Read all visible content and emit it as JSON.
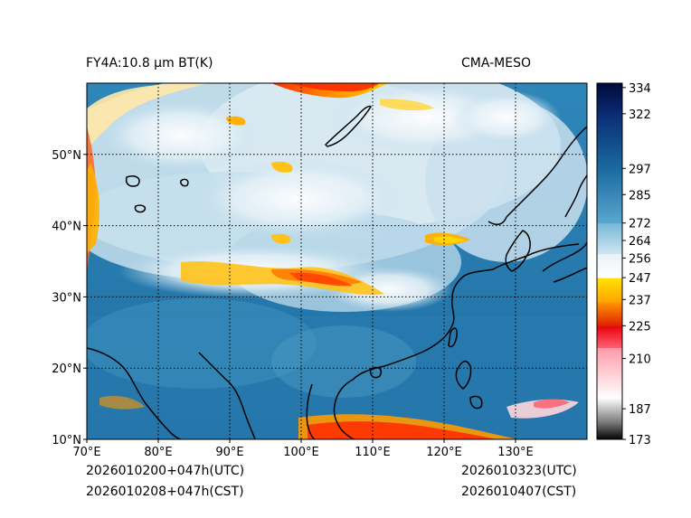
{
  "figure": {
    "title_left": "FY4A:10.8 µm BT(K)",
    "title_right": "CMA-MESO",
    "init_utc": "2026010200+047h(UTC)",
    "init_cst": "2026010208+047h(CST)",
    "valid_utc": "2026010323(UTC)",
    "valid_cst": "2026010407(CST)"
  },
  "map": {
    "lon_range": [
      70,
      140
    ],
    "lat_range": [
      10,
      60
    ],
    "lon_ticks": [
      {
        "value": 70,
        "label": "70°E"
      },
      {
        "value": 80,
        "label": "80°E"
      },
      {
        "value": 90,
        "label": "90°E"
      },
      {
        "value": 100,
        "label": "100°E"
      },
      {
        "value": 110,
        "label": "110°E"
      },
      {
        "value": 120,
        "label": "120°E"
      },
      {
        "value": 130,
        "label": "130°E"
      }
    ],
    "lat_ticks": [
      {
        "value": 10,
        "label": "10°N"
      },
      {
        "value": 20,
        "label": "20°N"
      },
      {
        "value": 30,
        "label": "30°N"
      },
      {
        "value": 40,
        "label": "40°N"
      },
      {
        "value": 50,
        "label": "50°N"
      }
    ],
    "grid": "dotted"
  },
  "colorbar": {
    "range": [
      173,
      336
    ],
    "ticks": [
      {
        "value": 334,
        "label": "334"
      },
      {
        "value": 322,
        "label": "322"
      },
      {
        "value": 297,
        "label": "297"
      },
      {
        "value": 285,
        "label": "285"
      },
      {
        "value": 272,
        "label": "272"
      },
      {
        "value": 264,
        "label": "264"
      },
      {
        "value": 256,
        "label": "256"
      },
      {
        "value": 247,
        "label": "247"
      },
      {
        "value": 237,
        "label": "237"
      },
      {
        "value": 225,
        "label": "225"
      },
      {
        "value": 210,
        "label": "210"
      },
      {
        "value": 187,
        "label": "187"
      },
      {
        "value": 173,
        "label": "173"
      }
    ],
    "segments": [
      {
        "from": 173,
        "to": 180,
        "color_low": "#000000",
        "color_high": "#6e6e6e"
      },
      {
        "from": 180,
        "to": 192,
        "color_low": "#6e6e6e",
        "color_high": "#ffffff"
      },
      {
        "from": 192,
        "to": 215,
        "color_low": "#ffffff",
        "color_high": "#ff9aa8"
      },
      {
        "from": 215,
        "to": 225,
        "color_low": "#ff6070",
        "color_high": "#e8000a"
      },
      {
        "from": 225,
        "to": 236,
        "color_low": "#e02000",
        "color_high": "#ff9a00"
      },
      {
        "from": 236,
        "to": 247,
        "color_low": "#ffa500",
        "color_high": "#ffe300"
      },
      {
        "from": 247,
        "to": 258,
        "color_low": "#ffffff",
        "color_high": "#e9f2f8"
      },
      {
        "from": 258,
        "to": 272,
        "color_low": "#d0e6f1",
        "color_high": "#76b7d8"
      },
      {
        "from": 272,
        "to": 297,
        "color_low": "#5aa7cf",
        "color_high": "#1a6a9f"
      },
      {
        "from": 297,
        "to": 322,
        "color_low": "#1a6a9f",
        "color_high": "#0a2c74"
      },
      {
        "from": 322,
        "to": 336,
        "color_low": "#0a2c74",
        "color_high": "#000a3a"
      }
    ]
  }
}
